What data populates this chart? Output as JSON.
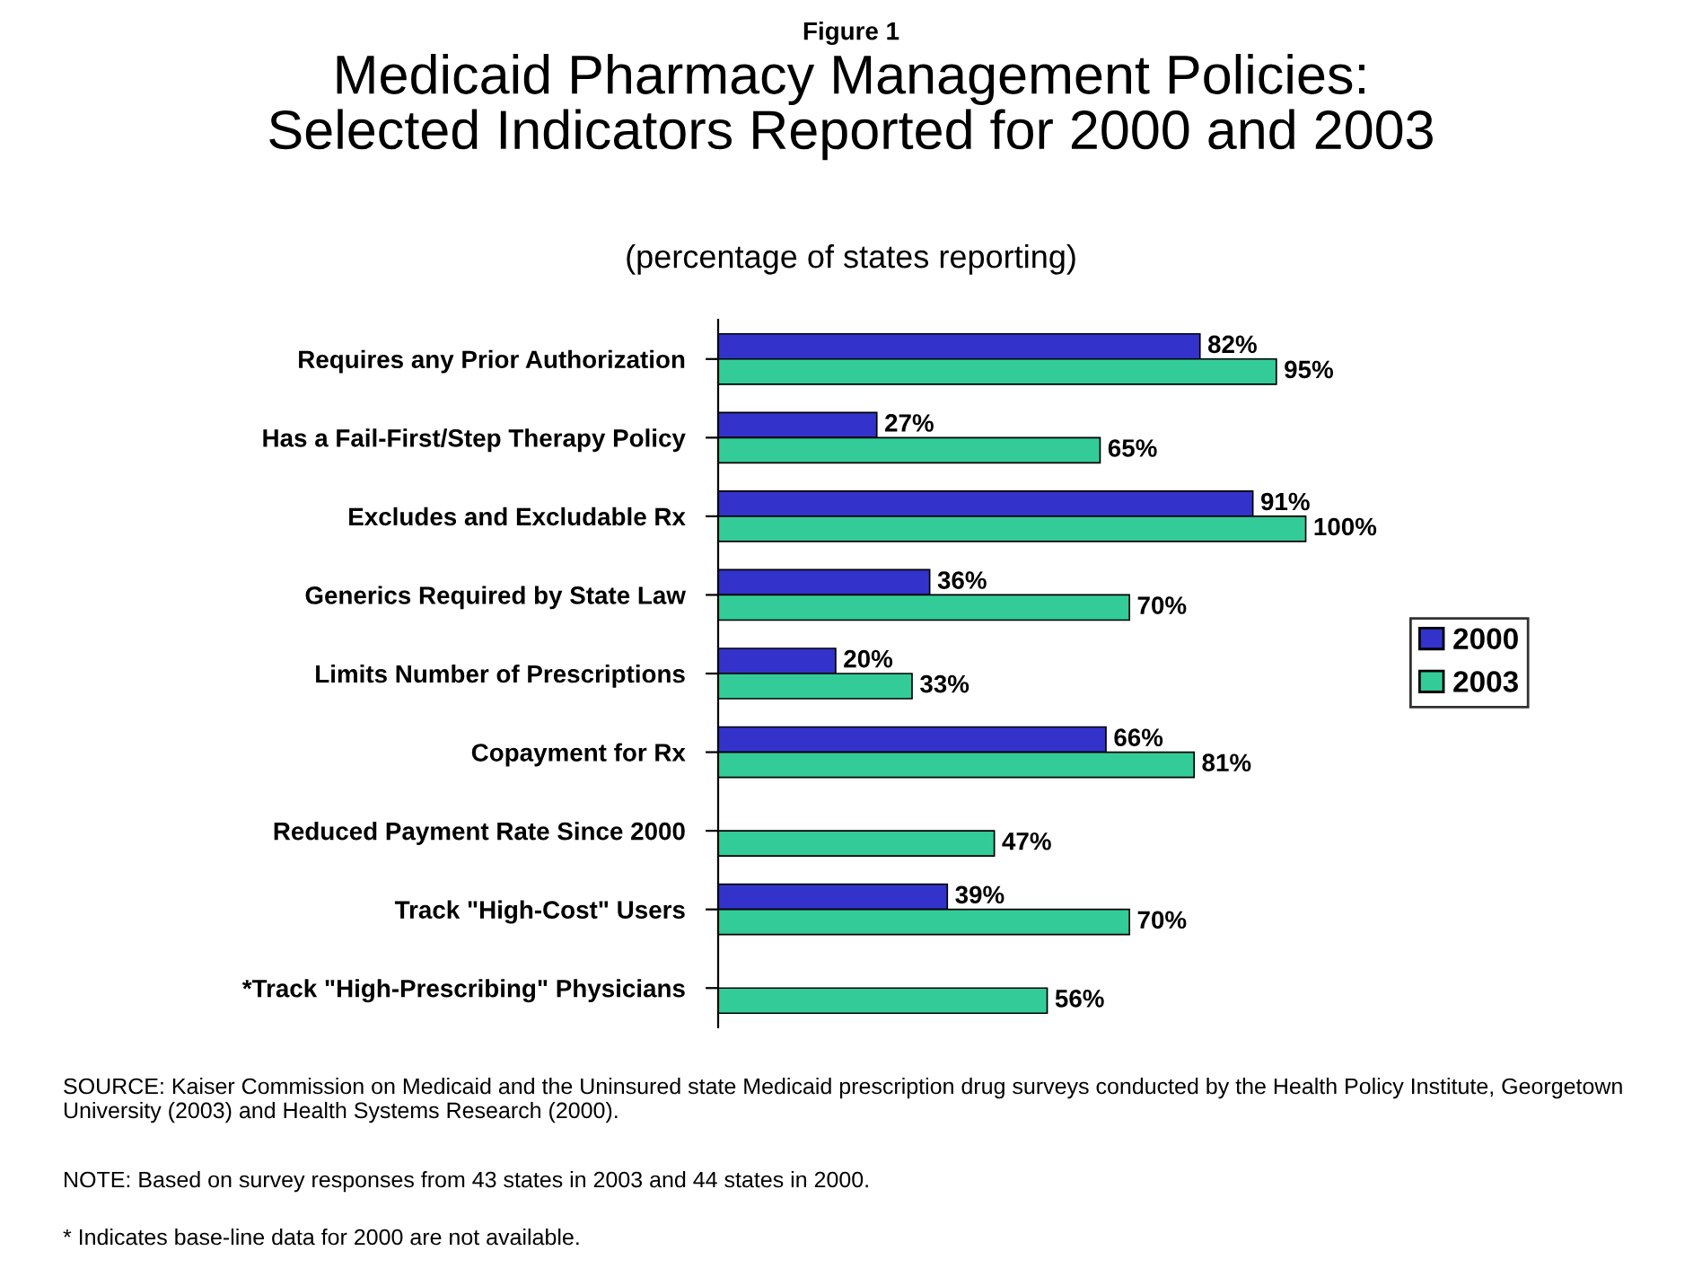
{
  "chart_data": {
    "type": "bar",
    "orientation": "horizontal",
    "title": "Medicaid Pharmacy Management Policies:\nSelected Indicators Reported for 2000 and 2003",
    "subtitle": "(percentage of states reporting)",
    "categories": [
      "Requires any Prior Authorization",
      "Has a Fail-First/Step Therapy Policy",
      "Excludes and Excludable Rx",
      "Generics Required by State Law",
      "Limits Number of Prescriptions",
      "Copayment for Rx",
      "Reduced Payment Rate Since 2000",
      "Track \"High-Cost\" Users",
      "*Track \"High-Prescribing\" Physicians"
    ],
    "series": [
      {
        "name": "2000",
        "color": "#3333cc",
        "values": [
          82,
          27,
          91,
          36,
          20,
          66,
          null,
          39,
          null
        ],
        "value_labels": [
          "82%",
          "27%",
          "91%",
          "36%",
          "20%",
          "66%",
          null,
          "39%",
          null
        ]
      },
      {
        "name": "2003",
        "color": "#33cc99",
        "values": [
          95,
          65,
          100,
          70,
          33,
          81,
          47,
          70,
          56
        ],
        "value_labels": [
          "95%",
          "65%",
          "100%",
          "70%",
          "33%",
          "81%",
          "47%",
          "70%",
          "56%"
        ]
      }
    ],
    "legend": "right",
    "grid": false,
    "annotations": [
      "Figure 1",
      "SOURCE: Kaiser Commission on Medicaid and the Uninsured state Medicaid prescription drug surveys conducted by the Health Policy Institute, Georgetown University (2003) and Health Systems Research (2000).",
      "NOTE: Based on survey responses from 43 states in 2003 and 44 states in 2000.",
      "* Indicates base-line data for 2000 are not available."
    ]
  }
}
